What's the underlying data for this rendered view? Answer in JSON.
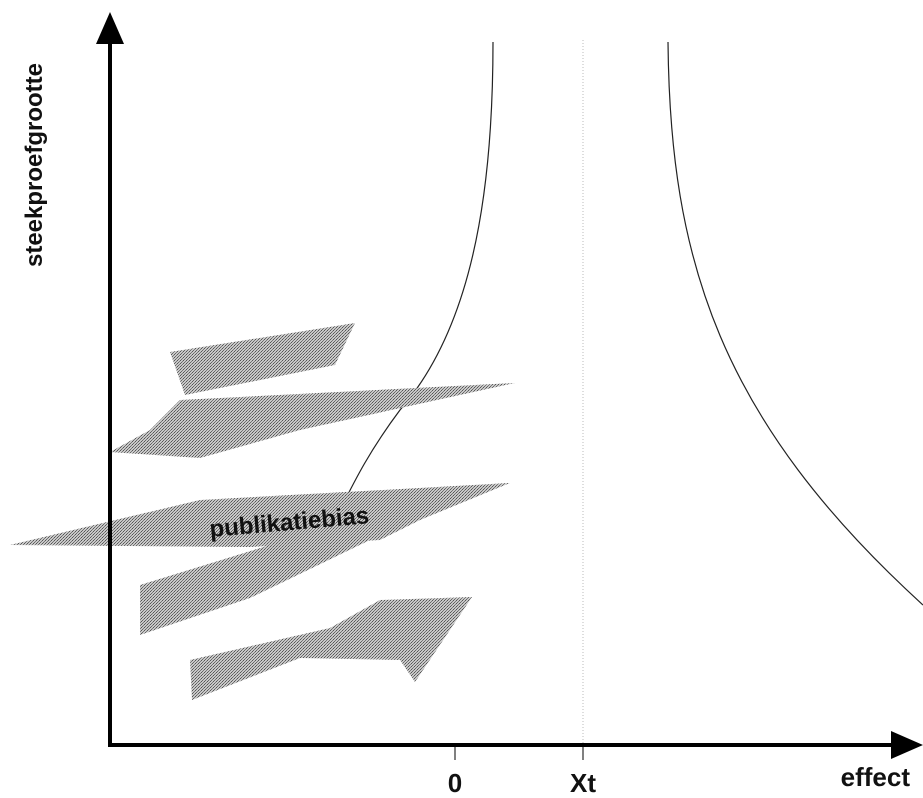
{
  "axes": {
    "y_label": "steekproefgrootte",
    "x_label": "effect",
    "x_ticks": [
      "0",
      "Xt"
    ]
  },
  "annotation": "publikatiebias"
}
